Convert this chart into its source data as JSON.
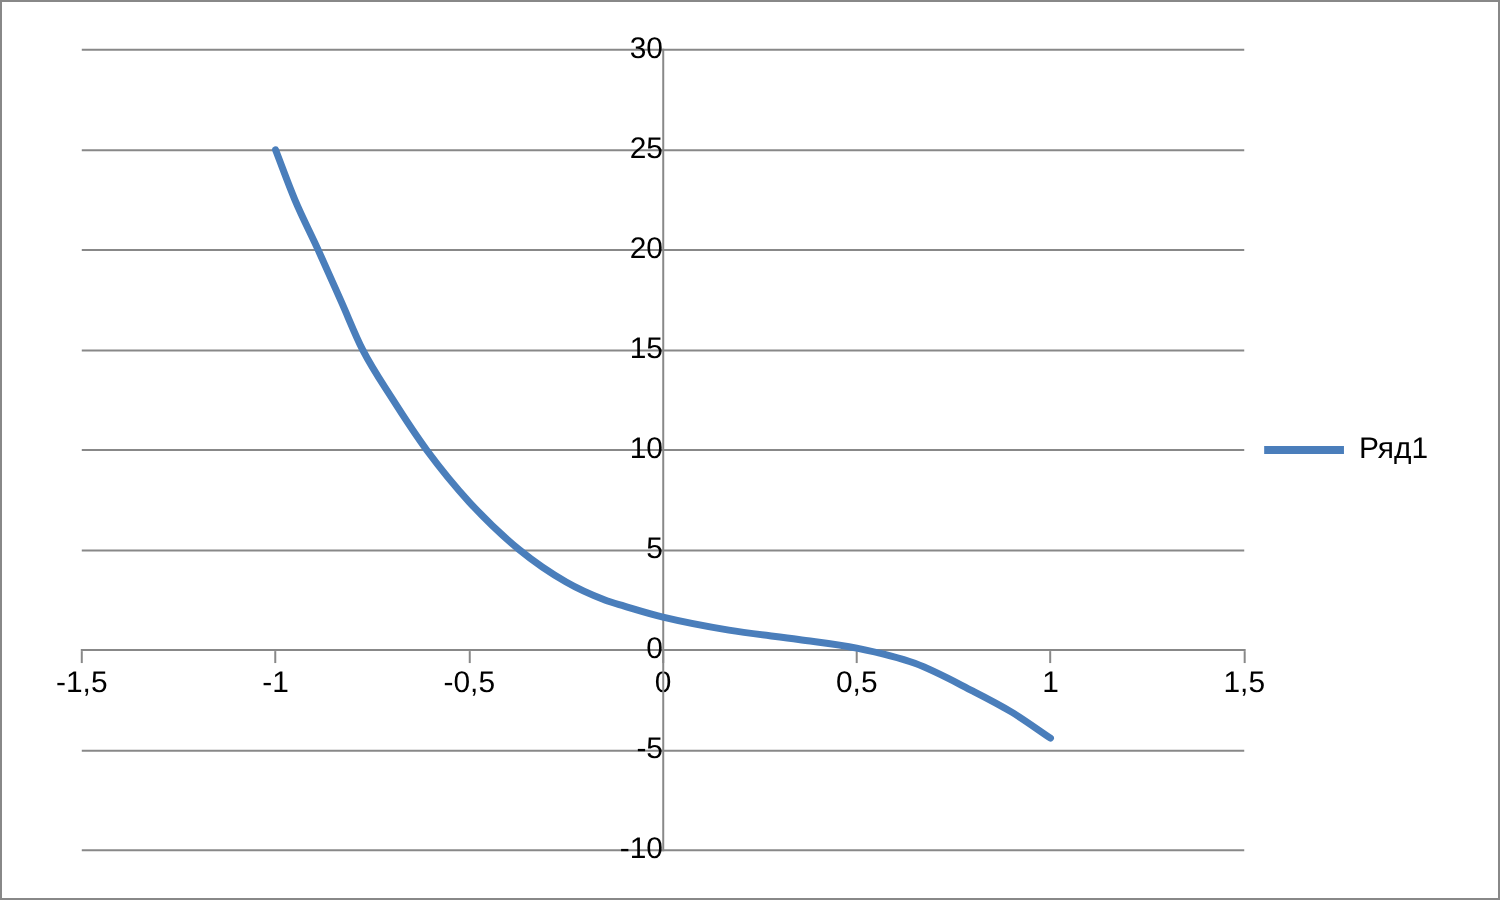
{
  "chart_data": {
    "type": "line",
    "x": [
      -1,
      -0.95,
      -0.89,
      -0.83,
      -0.775,
      -0.7,
      -0.61,
      -0.5,
      -0.37,
      -0.25,
      -0.15,
      -0.1,
      0,
      0.17,
      0.35,
      0.5,
      0.65,
      0.8,
      0.9,
      1
    ],
    "series": [
      {
        "name": "Ряд1",
        "color": "#4a7ebb",
        "values": [
          25,
          22.5,
          20,
          17.4,
          15,
          12.6,
          10,
          7.4,
          5,
          3.4,
          2.5,
          2.2,
          1.65,
          1,
          0.53,
          0.1,
          -0.66,
          -2.05,
          -3.1,
          -4.4
        ]
      }
    ],
    "xlim": [
      -1.5,
      1.5
    ],
    "xticks": [
      {
        "value": -1.5,
        "label": "-1,5"
      },
      -1,
      {
        "value": -0.5,
        "label": "-0,5"
      },
      0,
      {
        "value": 0.5,
        "label": "0,5"
      },
      1,
      {
        "value": 1.5,
        "label": "1,5"
      }
    ],
    "ylim": [
      -10,
      30
    ],
    "yticks": [
      -10,
      -5,
      0,
      5,
      10,
      15,
      20,
      25,
      30
    ],
    "grid": "y",
    "legend": "right",
    "marker": "none",
    "line_style": "solid"
  }
}
